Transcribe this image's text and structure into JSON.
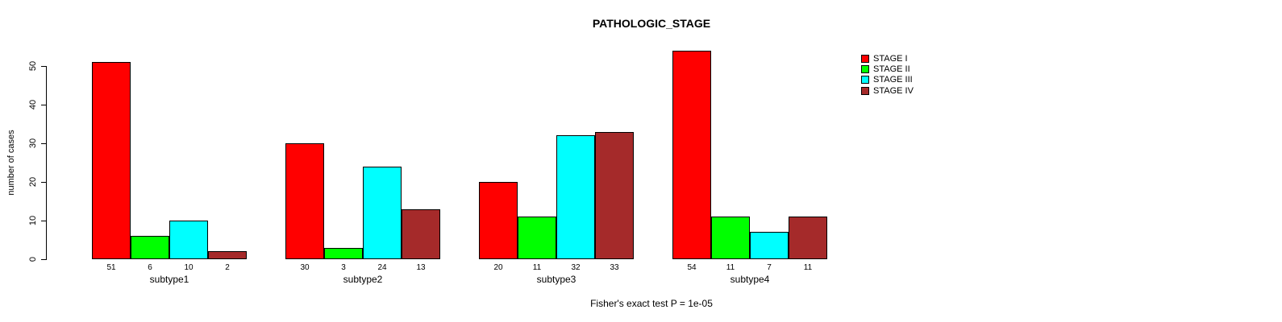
{
  "chart_data": {
    "type": "bar",
    "title": "PATHOLOGIC_STAGE",
    "ylabel": "number of cases",
    "xlabel": "",
    "caption": "Fisher's exact test P = 1e-05",
    "categories": [
      "subtype1",
      "subtype2",
      "subtype3",
      "subtype4"
    ],
    "series": [
      {
        "name": "STAGE I",
        "color": "#ff0000",
        "values": [
          51,
          30,
          20,
          54
        ]
      },
      {
        "name": "STAGE II",
        "color": "#00ff00",
        "values": [
          6,
          3,
          11,
          11
        ]
      },
      {
        "name": "STAGE III",
        "color": "#00ffff",
        "values": [
          10,
          24,
          32,
          7
        ]
      },
      {
        "name": "STAGE IV",
        "color": "#a52a2a",
        "values": [
          2,
          13,
          33,
          11
        ]
      }
    ],
    "yticks": [
      0,
      10,
      20,
      30,
      40,
      50
    ],
    "ylim": [
      0,
      50
    ],
    "grid": false,
    "value_labels_shown": true,
    "legend_position": "topright",
    "background": "#ffffff",
    "axis_color": "#000000"
  }
}
